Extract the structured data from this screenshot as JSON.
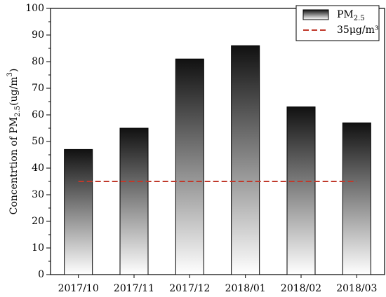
{
  "chart_data": {
    "type": "bar",
    "categories": [
      "2017/10",
      "2017/11",
      "2017/12",
      "2018/01",
      "2018/02",
      "2018/03"
    ],
    "series": [
      {
        "name": [
          {
            "text": "PM"
          },
          {
            "text": "2.5",
            "shift": "sub"
          }
        ],
        "color": "#000000",
        "values": [
          47,
          55,
          81,
          86,
          63,
          57
        ]
      }
    ],
    "reference_lines": [
      {
        "value": 35,
        "label": "35μg/m³",
        "color": "#c0392b"
      }
    ],
    "y_label": [
      {
        "text": "Concentrtion of PM"
      },
      {
        "text": "2.5",
        "shift": "sub"
      },
      {
        "text": "(ug/m"
      },
      {
        "text": "3",
        "shift": "sup"
      },
      {
        "text": ")"
      }
    ],
    "ylim": [
      0,
      100
    ],
    "yticks": [
      0,
      10,
      20,
      30,
      40,
      50,
      60,
      70,
      80,
      90,
      100
    ],
    "legend": "upper right",
    "grid": false
  }
}
